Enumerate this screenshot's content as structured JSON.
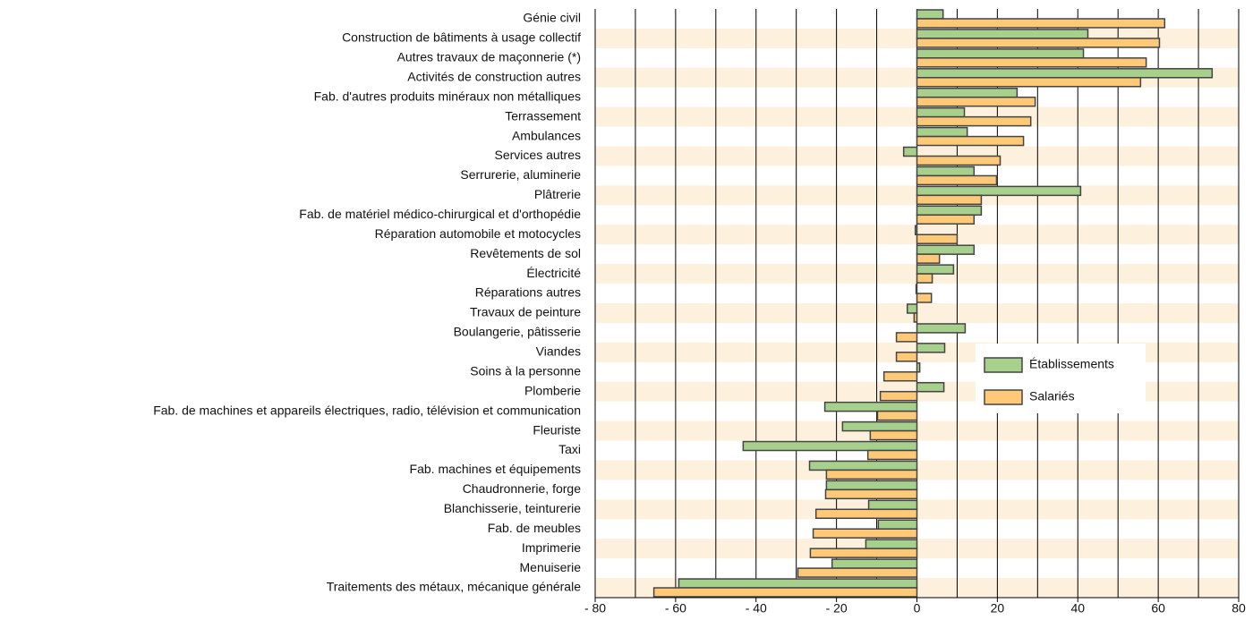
{
  "chart_data": {
    "type": "hbar",
    "categories": [
      "Génie civil",
      "Construction de bâtiments à usage collectif",
      "Autres travaux de maçonnerie (*)",
      "Activités de construction autres",
      "Fab. d'autres produits minéraux non métalliques",
      "Terrassement",
      "Ambulances",
      "Services autres",
      "Serrurerie, aluminerie",
      "Plâtrerie",
      "Fab. de matériel médico-chirurgical et d'orthopédie",
      "Réparation automobile et motocycles",
      "Revêtements de sol",
      "Électricité",
      "Réparations autres",
      "Travaux de peinture",
      "Boulangerie, pâtisserie",
      "Viandes",
      "Soins à la personne",
      "Plomberie",
      "Fab. de machines et appareils électriques, radio, télévision et communication",
      "Fleuriste",
      "Taxi",
      "Fab. machines et équipements",
      "Chaudronnerie, forge",
      "Blanchisserie, teinturerie",
      "Fab. de meubles",
      "Imprimerie",
      "Menuiserie",
      "Traitements des métaux, mécanique générale"
    ],
    "series": [
      {
        "name": "Établissements",
        "color": "#a8d08d",
        "values": [
          6.5,
          42.5,
          41.4,
          73.4,
          24.9,
          11.8,
          12.5,
          -3.3,
          14.2,
          40.7,
          16,
          -0.4,
          14.2,
          9.1,
          -0.2,
          -2.4,
          12,
          6.9,
          0.7,
          6.7,
          -22.9,
          -18.5,
          -43.2,
          -26.7,
          -22.5,
          -12,
          -9.6,
          -12.7,
          -21.1,
          -59.2
        ]
      },
      {
        "name": "Salariés",
        "color": "#ffc978",
        "values": [
          61.6,
          60.3,
          57,
          55.6,
          29.4,
          28.3,
          26.5,
          20.7,
          19.8,
          16,
          14.2,
          10,
          5.6,
          3.8,
          3.6,
          -0.7,
          -5.1,
          -5.1,
          -8.2,
          -9.1,
          -9.8,
          -11.6,
          -12.2,
          -22.5,
          -22.7,
          -25.1,
          -25.8,
          -26.5,
          -29.6,
          -65.4
        ]
      }
    ],
    "xlim": [
      -80,
      80
    ],
    "xticks": [
      {
        "value": -80,
        "label": "- 80"
      },
      {
        "value": -60,
        "label": "- 60"
      },
      {
        "value": -40,
        "label": "- 40"
      },
      {
        "value": -20,
        "label": "- 20"
      },
      0,
      20,
      40,
      60,
      80
    ],
    "minor_xticks": [
      -70,
      -50,
      -30,
      -10,
      10,
      30,
      50,
      70
    ],
    "grid": true,
    "legend_position": "right"
  }
}
